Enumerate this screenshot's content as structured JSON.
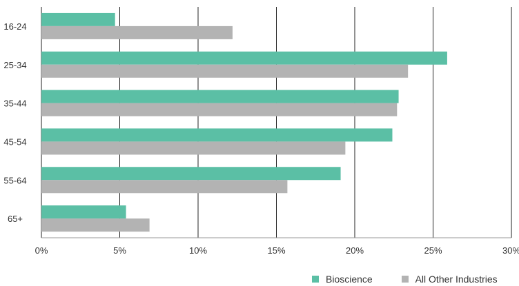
{
  "chart_data": {
    "type": "bar",
    "orientation": "horizontal",
    "title": "",
    "xlabel": "",
    "ylabel": "",
    "xlim": [
      0,
      30
    ],
    "x_ticks": [
      "0%",
      "5%",
      "10%",
      "15%",
      "20%",
      "25%",
      "30%"
    ],
    "categories": [
      "16-24",
      "25-34",
      "35-44",
      "45-54",
      "55-64",
      "65+"
    ],
    "series": [
      {
        "name": "Bioscience",
        "color": "#5bbfa5",
        "values": [
          4.7,
          25.9,
          22.8,
          22.4,
          19.1,
          5.4
        ]
      },
      {
        "name": "All Other Industries",
        "color": "#b3b3b3",
        "values": [
          12.2,
          23.4,
          22.7,
          19.4,
          15.7,
          6.9
        ]
      }
    ],
    "grid": true,
    "legend_position": "bottom-right"
  }
}
